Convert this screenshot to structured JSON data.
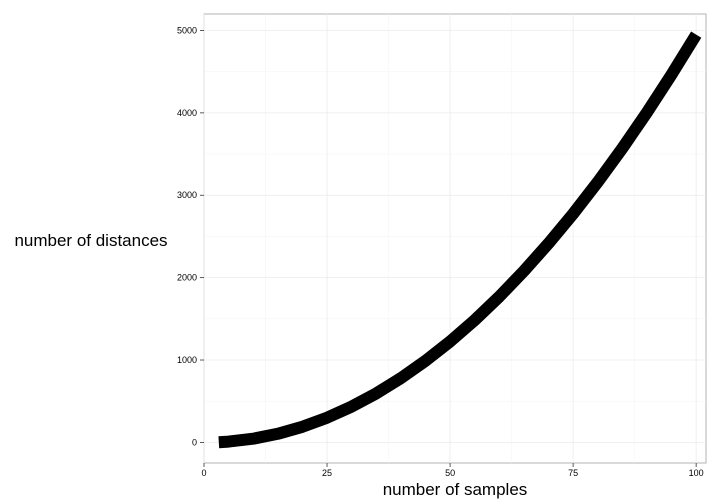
{
  "chart_data": {
    "type": "line",
    "title": "",
    "xlabel": "number of samples",
    "ylabel": "number of distances",
    "xlim": [
      0,
      102
    ],
    "ylim": [
      -250,
      5200
    ],
    "x_ticks": [
      0,
      25,
      50,
      75,
      100
    ],
    "y_ticks": [
      0,
      1000,
      2000,
      3000,
      4000,
      5000
    ],
    "grid": true,
    "legend": "none",
    "line_color": "#000000",
    "series": [
      {
        "x": [
          3,
          5,
          10,
          15,
          20,
          25,
          30,
          35,
          40,
          45,
          50,
          55,
          60,
          65,
          70,
          75,
          80,
          85,
          90,
          95,
          100
        ],
        "y": [
          3,
          10,
          45,
          105,
          190,
          300,
          435,
          595,
          780,
          990,
          1225,
          1485,
          1770,
          2080,
          2415,
          2775,
          3160,
          3570,
          4005,
          4465,
          4950
        ]
      }
    ]
  }
}
